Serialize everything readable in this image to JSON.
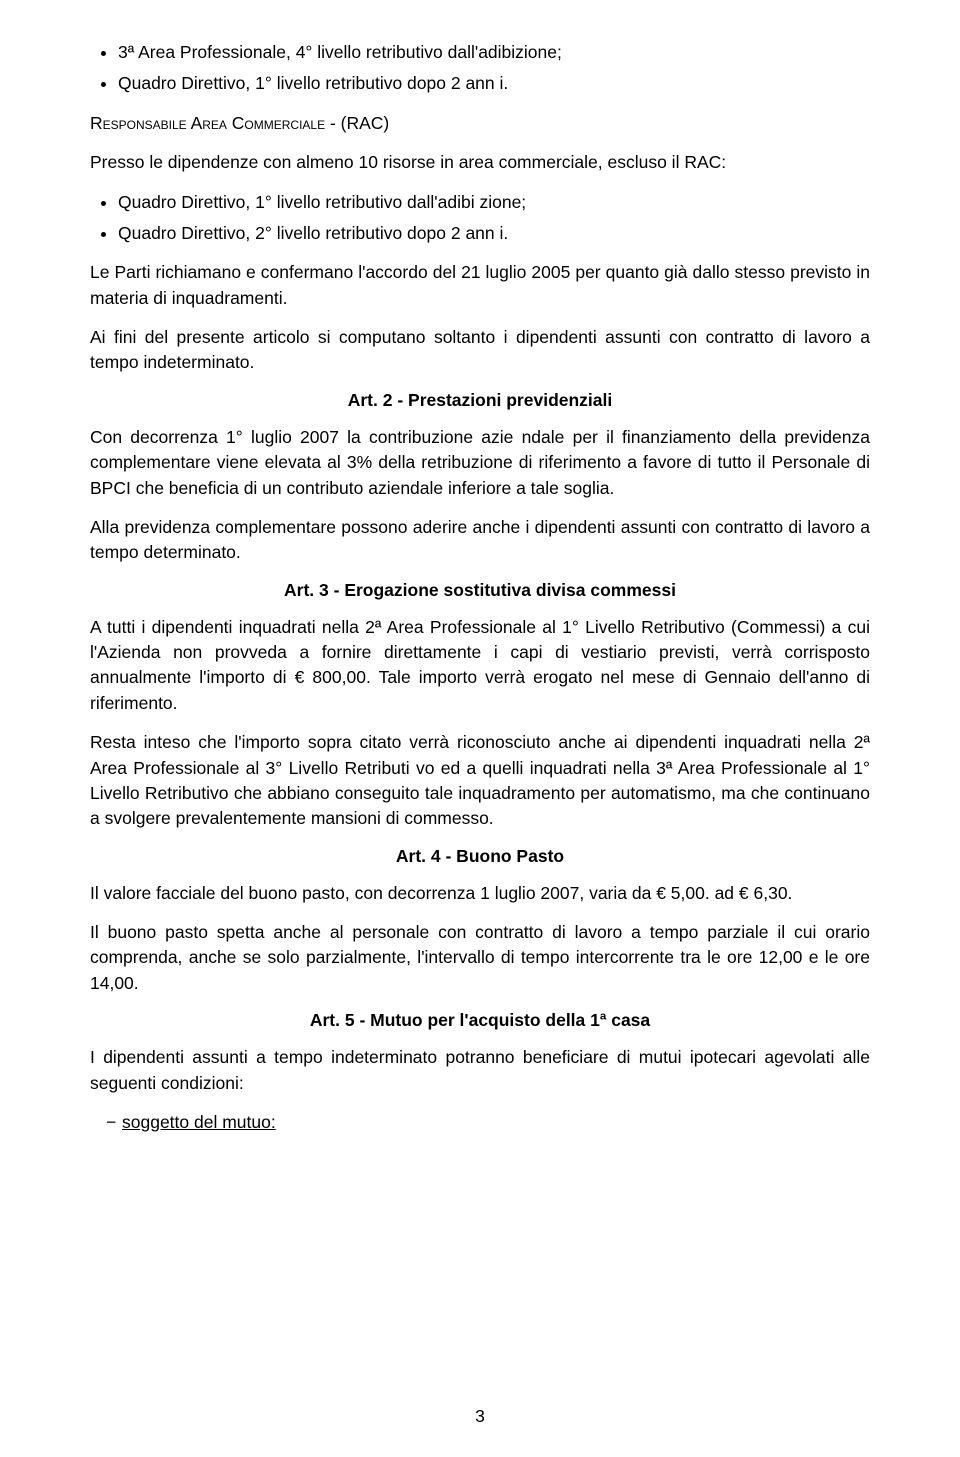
{
  "bullets_top": [
    "3ª Area Professionale, 4° livello retributivo dall'adibizione;",
    "Quadro Direttivo, 1° livello retributivo dopo 2 ann i."
  ],
  "rac": {
    "head_smallcaps": "Responsabile Area Commerciale",
    "head_tail": " - (RAC)",
    "intro": "Presso le dipendenze con almeno 10 risorse in area commerciale, escluso il RAC:",
    "bullets": [
      "Quadro Direttivo, 1° livello retributivo dall'adibi zione;",
      "Quadro Direttivo, 2° livello retributivo dopo 2 ann i."
    ]
  },
  "paragraphs_after_rac": [
    "Le Parti richiamano e confermano l'accordo del 21 luglio 2005 per quanto già dallo stesso previsto in materia di inquadramenti.",
    "Ai fini del presente articolo si computano soltanto i dipendenti assunti con contratto di lavoro a tempo indeterminato."
  ],
  "art2": {
    "title": "Art. 2 - Prestazioni previdenziali",
    "paragraphs": [
      "Con decorrenza 1° luglio 2007 la contribuzione azie ndale per il finanziamento della previdenza complementare viene elevata al 3% della retribuzione di riferimento a favore di tutto il Personale di BPCI che beneficia di un contributo aziendale inferiore a tale soglia.",
      "Alla previdenza complementare possono aderire anche i dipendenti assunti con contratto di lavoro a tempo determinato."
    ]
  },
  "art3": {
    "title": "Art. 3 - Erogazione sostitutiva divisa commessi",
    "paragraphs": [
      "A tutti i dipendenti inquadrati nella 2ª Area Professionale al 1° Livello Retributivo (Commessi) a cui l'Azienda non provveda a fornire direttamente i capi di vestiario previsti, verrà corrisposto annualmente l'importo di € 800,00. Tale importo verrà erogato nel mese di Gennaio dell'anno di riferimento.",
      "Resta inteso che l'importo sopra citato verrà riconosciuto anche ai dipendenti inquadrati nella 2ª Area Professionale al 3° Livello Retributi vo ed a quelli inquadrati nella 3ª Area Professionale al 1° Livello Retributivo che abbiano conseguito tale inquadramento per automatismo, ma che continuano a svolgere prevalentemente mansioni di commesso."
    ]
  },
  "art4": {
    "title": "Art. 4 - Buono Pasto",
    "paragraphs": [
      "Il valore facciale del buono pasto, con decorrenza 1 luglio 2007, varia da € 5,00. ad € 6,30.",
      "Il buono pasto spetta anche al personale con contratto di lavoro a tempo parziale il cui orario comprenda, anche se solo parzialmente, l'intervallo di tempo intercorrente tra le ore 12,00 e le ore 14,00."
    ]
  },
  "art5": {
    "title": "Art. 5 - Mutuo per l'acquisto della 1ª casa",
    "paragraphs": [
      "I dipendenti assunti a tempo indeterminato potranno beneficiare di mutui ipotecari agevolati alle seguenti condizioni:"
    ],
    "dash_items": [
      "soggetto del mutuo:"
    ]
  },
  "page_number": "3"
}
